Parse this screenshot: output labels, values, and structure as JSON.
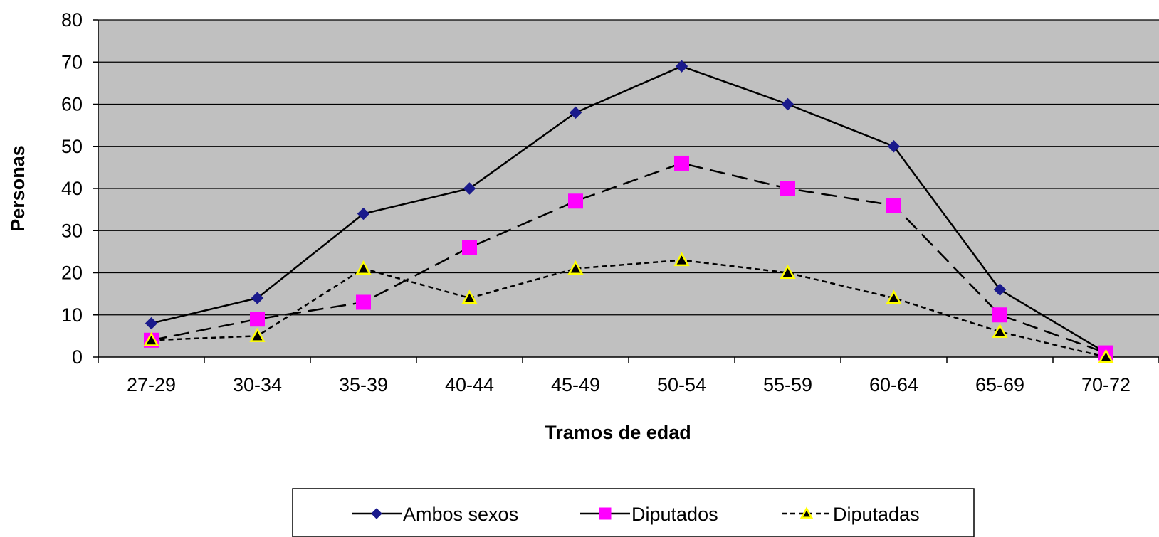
{
  "chart_data": {
    "type": "line",
    "title": "",
    "xlabel": "Tramos de edad",
    "ylabel": "Personas",
    "categories": [
      "27-29",
      "30-34",
      "35-39",
      "40-44",
      "45-49",
      "50-54",
      "55-59",
      "60-64",
      "65-69",
      "70-72"
    ],
    "ylim": [
      0,
      80
    ],
    "yticks": [
      0,
      10,
      20,
      30,
      40,
      50,
      60,
      70,
      80
    ],
    "grid": "horizontal",
    "legend_position": "bottom",
    "series": [
      {
        "name": "Ambos sexos",
        "values": [
          8,
          14,
          34,
          40,
          58,
          69,
          60,
          50,
          16,
          1
        ],
        "line_color": "#000000",
        "marker": "diamond",
        "marker_color": "#1a1a8c",
        "dash": "solid"
      },
      {
        "name": "Diputados",
        "values": [
          4,
          9,
          13,
          26,
          37,
          46,
          40,
          36,
          10,
          1
        ],
        "line_color": "#000000",
        "marker": "square",
        "marker_color": "#ff00ff",
        "dash": "long-dash"
      },
      {
        "name": "Diputadas",
        "values": [
          4,
          5,
          21,
          14,
          21,
          23,
          20,
          14,
          6,
          0
        ],
        "line_color": "#000000",
        "marker": "triangle",
        "marker_color": "#000000",
        "marker_outline": "#ffff00",
        "dash": "short-dash"
      }
    ]
  },
  "colors": {
    "plot_background": "#c0c0c0",
    "gridline": "#000000"
  }
}
